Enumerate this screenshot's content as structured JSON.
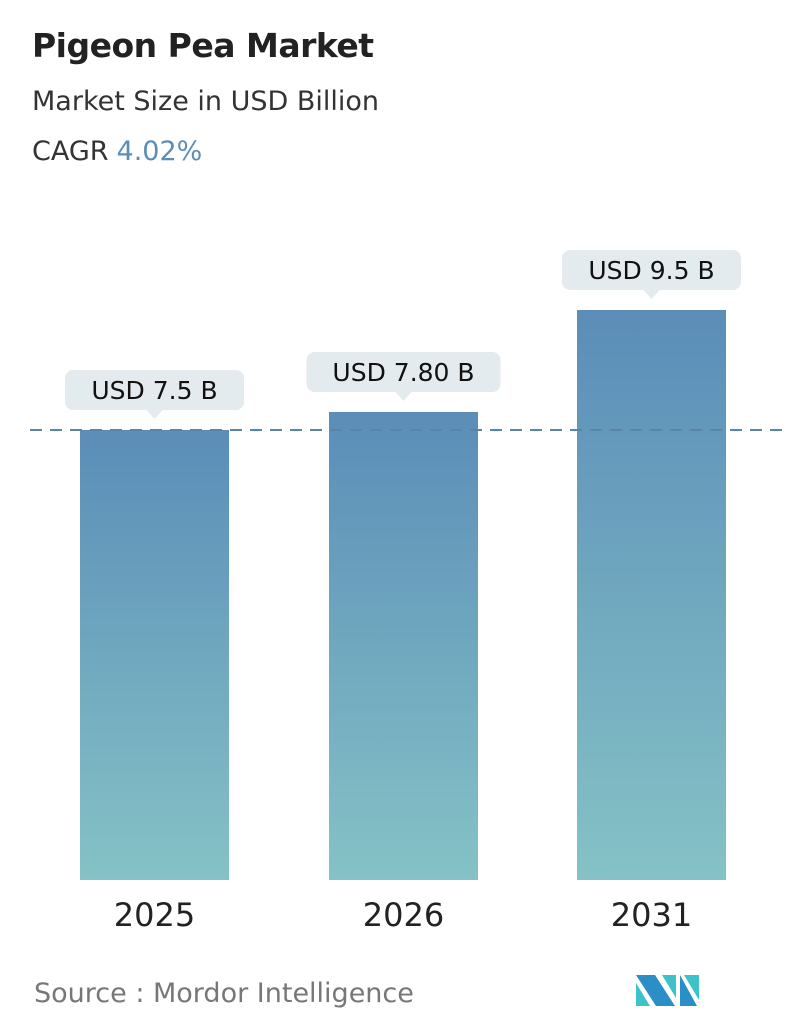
{
  "header": {
    "title": "Pigeon Pea Market",
    "subtitle": "Market Size in USD Billion",
    "cagr_label": "CAGR",
    "cagr_value": "4.02%"
  },
  "footer": {
    "source": "Source :  Mordor Intelligence",
    "logo_text": "Mordor Intelligence"
  },
  "colors": {
    "bar_top": "#5b8db8",
    "bar_bottom": "#85c2c6",
    "label_bg": "#e3ebef",
    "dash": "#5b85a8",
    "accent": "#5b8db8"
  },
  "chart_data": {
    "type": "bar",
    "categories": [
      "2025",
      "2026",
      "2031"
    ],
    "values": [
      7.5,
      7.8,
      9.5
    ],
    "data_labels": [
      "USD 7.5 B",
      "USD 7.80 B",
      "USD 9.5 B"
    ],
    "title": "Pigeon Pea Market",
    "ylabel": "Market Size in USD Billion",
    "reference_line": {
      "value": 7.5,
      "style": "dashed"
    },
    "grid": false,
    "legend": "none",
    "ylim": [
      0,
      10
    ]
  }
}
